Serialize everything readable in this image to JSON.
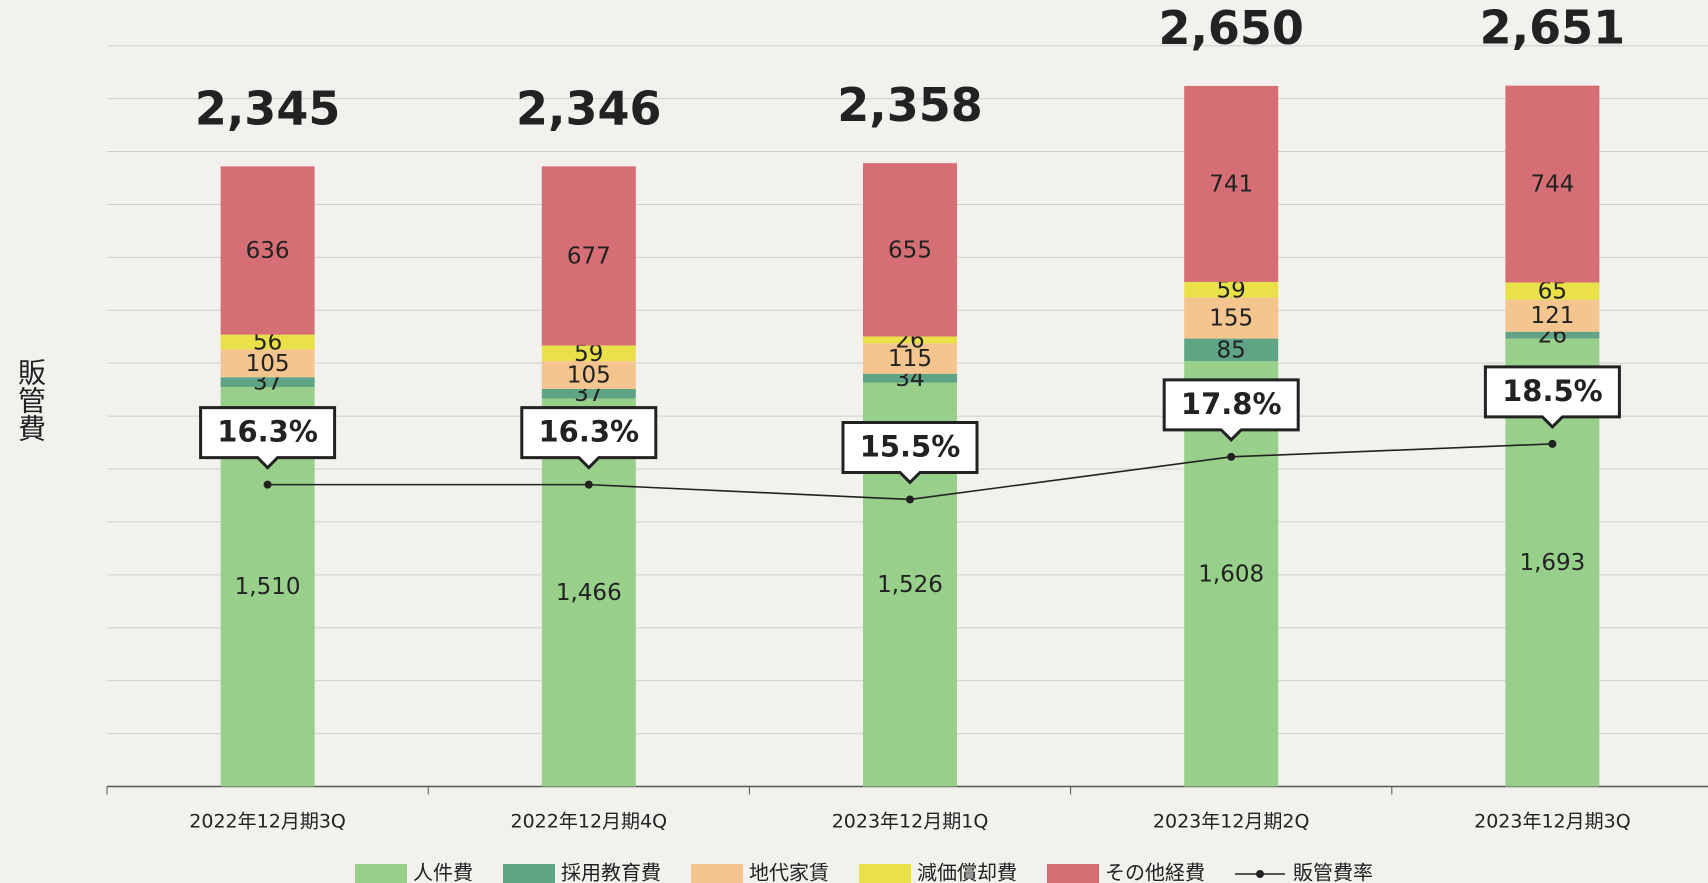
{
  "chart_data": {
    "type": "bar",
    "stacked": true,
    "y_label": "販管費",
    "categories": [
      "2022年12月期3Q",
      "2022年12月期4Q",
      "2023年12月期1Q",
      "2023年12月期2Q",
      "2023年12月期3Q"
    ],
    "series": [
      {
        "name": "人件費",
        "color": "#98cf8a",
        "values": [
          1510,
          1466,
          1526,
          1608,
          1693
        ],
        "value_labels": [
          "1,510",
          "1,466",
          "1,526",
          "1,608",
          "1,693"
        ]
      },
      {
        "name": "採用教育費",
        "color": "#5fa585",
        "values": [
          37,
          37,
          34,
          85,
          26
        ]
      },
      {
        "name": "地代家賃",
        "color": "#f4c58f",
        "values": [
          105,
          105,
          115,
          155,
          121
        ]
      },
      {
        "name": "減価償却費",
        "color": "#e9e04a",
        "values": [
          56,
          59,
          26,
          59,
          65
        ]
      },
      {
        "name": "その他経費",
        "color": "#d66f75",
        "values": [
          636,
          677,
          655,
          741,
          744
        ]
      },
      {
        "name": "販管費率",
        "type": "line",
        "axis": "y2",
        "color": "#222222",
        "values": [
          16.3,
          16.3,
          15.5,
          17.8,
          18.5
        ],
        "value_labels": [
          "16.3%",
          "16.3%",
          "15.5%",
          "17.8%",
          "18.5%"
        ]
      }
    ],
    "totals": [
      2345,
      2346,
      2358,
      2650,
      2651
    ],
    "total_labels": [
      "2,345",
      "2,346",
      "2,358",
      "2,650",
      "2,651"
    ],
    "ylim": [
      0,
      2800
    ],
    "yticks": [
      0,
      200,
      400,
      600,
      800,
      1000,
      1200,
      1400,
      1600,
      1800,
      2000,
      2200,
      2400,
      2600,
      2800
    ],
    "y2lim": [
      0,
      40
    ],
    "grid": true
  }
}
